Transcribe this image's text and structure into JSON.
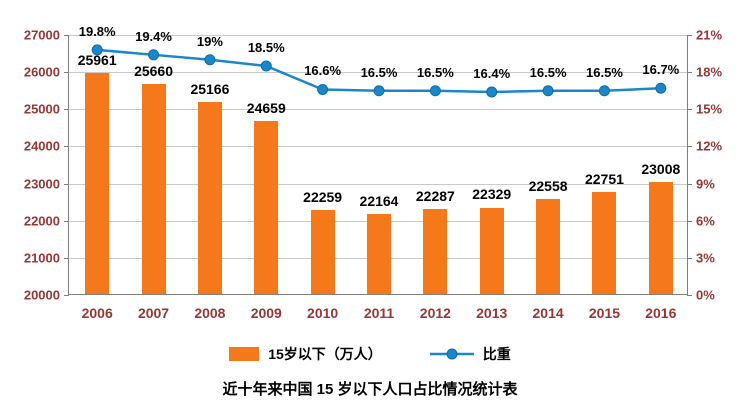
{
  "chart_data": {
    "type": "bar+line",
    "title": "近十年来中国 15 岁以下人口占比情况统计表",
    "categories": [
      "2006",
      "2007",
      "2008",
      "2009",
      "2010",
      "2011",
      "2012",
      "2013",
      "2014",
      "2015",
      "2016"
    ],
    "series": [
      {
        "name": "15岁以下（万人）",
        "type": "bar",
        "axis": "left",
        "color": "#F5791A",
        "values": [
          25961,
          25660,
          25166,
          24659,
          22259,
          22164,
          22287,
          22329,
          22558,
          22751,
          23008
        ]
      },
      {
        "name": "比重",
        "type": "line",
        "axis": "right",
        "color": "#1B87C9",
        "values_percent": [
          19.8,
          19.4,
          19.0,
          18.5,
          16.6,
          16.5,
          16.5,
          16.4,
          16.5,
          16.5,
          16.7
        ],
        "point_labels": [
          "19.8%",
          "19.4%",
          "19%",
          "18.5%",
          "16.6%",
          "16.5%",
          "16.5%",
          "16.4%",
          "16.5%",
          "16.5%",
          "16.7%"
        ]
      }
    ],
    "left_axis": {
      "min": 20000,
      "max": 27000,
      "step": 1000,
      "tick_labels": [
        "20000",
        "21000",
        "22000",
        "23000",
        "24000",
        "25000",
        "26000",
        "27000"
      ]
    },
    "right_axis": {
      "min_percent": 0,
      "max_percent": 21,
      "step_percent": 3,
      "tick_labels": [
        "0%",
        "3%",
        "6%",
        "9%",
        "12%",
        "15%",
        "18%",
        "21%"
      ]
    },
    "grid": true,
    "legend_position": "bottom"
  },
  "style": {
    "bar_color": "#F5791A",
    "line_color": "#1B87C9",
    "axis_label_color": "#953735",
    "grid_color": "#C9C9C9",
    "axis_line_color": "#7F7F7F",
    "data_label_color": "#000000",
    "background": "#FFFFFF"
  }
}
